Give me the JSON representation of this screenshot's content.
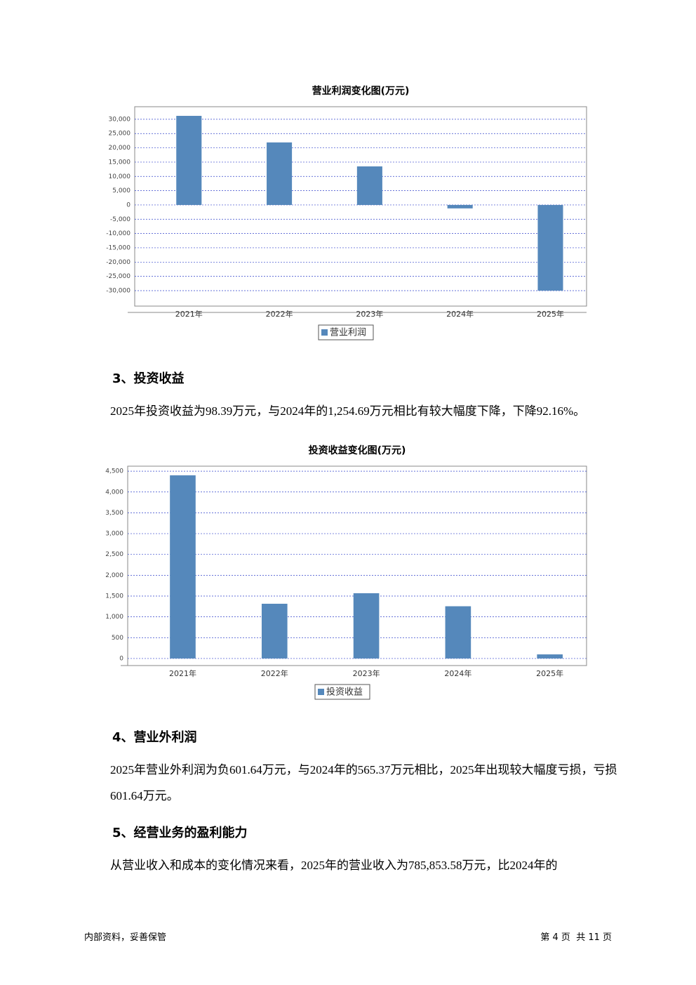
{
  "chart_data": [
    {
      "type": "bar",
      "title": "营业利润变化图(万元)",
      "categories": [
        "2021年",
        "2022年",
        "2023年",
        "2024年",
        "2025年"
      ],
      "series": [
        {
          "name": "营业利润",
          "color": "#5588bb",
          "values": [
            31200,
            21900,
            13500,
            -1200,
            -30000
          ]
        }
      ],
      "ylim": [
        -33200,
        34400
      ],
      "yticks": [
        {
          "value": 30000,
          "label": "30,000"
        },
        {
          "value": 25000,
          "label": "25,000"
        },
        {
          "value": 20000,
          "label": "20,000"
        },
        {
          "value": 15000,
          "label": "15,000"
        },
        {
          "value": 10000,
          "label": "10,000"
        },
        {
          "value": 5000,
          "label": "5,000"
        },
        0,
        {
          "value": -5000,
          "label": "-5,000"
        },
        {
          "value": -10000,
          "label": "-10,000"
        },
        {
          "value": -15000,
          "label": "-15,000"
        },
        {
          "value": -20000,
          "label": "-20,000"
        },
        {
          "value": -25000,
          "label": "-25,000"
        },
        {
          "value": -30000,
          "label": "-30,000"
        }
      ],
      "grid": true,
      "legend": "bottom"
    },
    {
      "type": "bar",
      "title": "投资收益变化图(万元)",
      "categories": [
        "2021年",
        "2022年",
        "2023年",
        "2024年",
        "2025年"
      ],
      "series": [
        {
          "name": "投资收益",
          "color": "#5588bb",
          "values": [
            4400,
            1315,
            1568,
            1254.69,
            98.39
          ]
        }
      ],
      "ylim": [
        -170,
        4620
      ],
      "yticks": [
        0,
        500,
        {
          "value": 1000,
          "label": "1,000"
        },
        {
          "value": 1500,
          "label": "1,500"
        },
        {
          "value": 2000,
          "label": "2,000"
        },
        {
          "value": 2500,
          "label": "2,500"
        },
        {
          "value": 3000,
          "label": "3,000"
        },
        {
          "value": 3500,
          "label": "3,500"
        },
        {
          "value": 4000,
          "label": "4,000"
        },
        {
          "value": 4500,
          "label": "4,500"
        }
      ],
      "grid": true,
      "legend": "bottom"
    }
  ],
  "sections": [
    {
      "heading": "3、投资收益",
      "paragraph": "2025年投资收益为98.39万元，与2024年的1,254.69万元相比有较大幅度下降，下降92.16%。"
    },
    {
      "heading": "4、营业外利润",
      "paragraph": "2025年营业外利润为负601.64万元，与2024年的565.37万元相比，2025年出现较大幅度亏损，亏损601.64万元。"
    },
    {
      "heading": "5、经营业务的盈利能力",
      "paragraph": "从营业收入和成本的变化情况来看，2025年的营业收入为785,853.58万元，比2024年的"
    }
  ],
  "footer": {
    "left": "内部资料，妥善保管",
    "right": "第 4 页  共 11 页"
  }
}
